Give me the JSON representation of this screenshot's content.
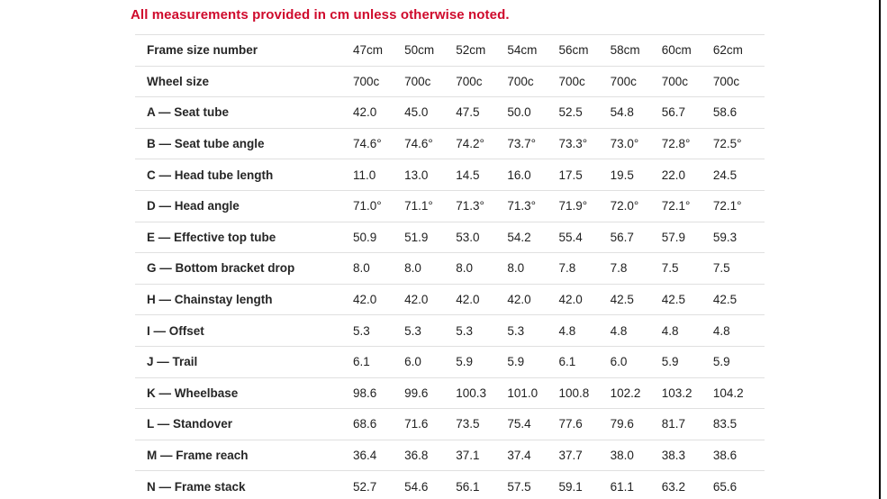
{
  "page": {
    "note": "All measurements provided in cm unless otherwise noted.",
    "note_color": "#cf0a2c",
    "divider_color": "#e0e0e0",
    "text_color": "#212121"
  },
  "table": {
    "rows": [
      {
        "label": "Frame size number",
        "values": [
          "47cm",
          "50cm",
          "52cm",
          "54cm",
          "56cm",
          "58cm",
          "60cm",
          "62cm"
        ]
      },
      {
        "label": "Wheel size",
        "values": [
          "700c",
          "700c",
          "700c",
          "700c",
          "700c",
          "700c",
          "700c",
          "700c"
        ]
      },
      {
        "label": "A — Seat tube",
        "values": [
          "42.0",
          "45.0",
          "47.5",
          "50.0",
          "52.5",
          "54.8",
          "56.7",
          "58.6"
        ]
      },
      {
        "label": "B — Seat tube angle",
        "values": [
          "74.6°",
          "74.6°",
          "74.2°",
          "73.7°",
          "73.3°",
          "73.0°",
          "72.8°",
          "72.5°"
        ]
      },
      {
        "label": "C — Head tube length",
        "values": [
          "11.0",
          "13.0",
          "14.5",
          "16.0",
          "17.5",
          "19.5",
          "22.0",
          "24.5"
        ]
      },
      {
        "label": "D — Head angle",
        "values": [
          "71.0°",
          "71.1°",
          "71.3°",
          "71.3°",
          "71.9°",
          "72.0°",
          "72.1°",
          "72.1°"
        ]
      },
      {
        "label": "E — Effective top tube",
        "values": [
          "50.9",
          "51.9",
          "53.0",
          "54.2",
          "55.4",
          "56.7",
          "57.9",
          "59.3"
        ]
      },
      {
        "label": "G — Bottom bracket drop",
        "values": [
          "8.0",
          "8.0",
          "8.0",
          "8.0",
          "7.8",
          "7.8",
          "7.5",
          "7.5"
        ]
      },
      {
        "label": "H — Chainstay length",
        "values": [
          "42.0",
          "42.0",
          "42.0",
          "42.0",
          "42.0",
          "42.5",
          "42.5",
          "42.5"
        ]
      },
      {
        "label": "I — Offset",
        "values": [
          "5.3",
          "5.3",
          "5.3",
          "5.3",
          "4.8",
          "4.8",
          "4.8",
          "4.8"
        ]
      },
      {
        "label": "J — Trail",
        "values": [
          "6.1",
          "6.0",
          "5.9",
          "5.9",
          "6.1",
          "6.0",
          "5.9",
          "5.9"
        ]
      },
      {
        "label": "K — Wheelbase",
        "values": [
          "98.6",
          "99.6",
          "100.3",
          "101.0",
          "100.8",
          "102.2",
          "103.2",
          "104.2"
        ]
      },
      {
        "label": "L — Standover",
        "values": [
          "68.6",
          "71.6",
          "73.5",
          "75.4",
          "77.6",
          "79.6",
          "81.7",
          "83.5"
        ]
      },
      {
        "label": "M — Frame reach",
        "values": [
          "36.4",
          "36.8",
          "37.1",
          "37.4",
          "37.7",
          "38.0",
          "38.3",
          "38.6"
        ]
      },
      {
        "label": "N — Frame stack",
        "values": [
          "52.7",
          "54.6",
          "56.1",
          "57.5",
          "59.1",
          "61.1",
          "63.2",
          "65.6"
        ]
      }
    ]
  }
}
